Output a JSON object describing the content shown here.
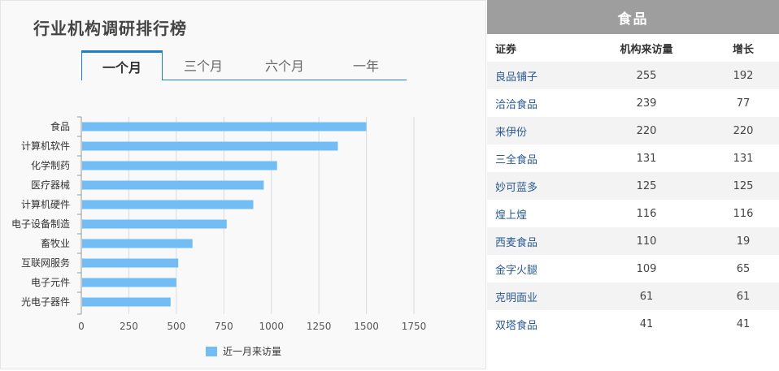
{
  "left": {
    "title": "行业机构调研排行榜",
    "tabs": [
      "一个月",
      "三个月",
      "六个月",
      "一年"
    ],
    "active_tab": 0
  },
  "chart_data": {
    "type": "bar",
    "orientation": "horizontal",
    "categories": [
      "食品",
      "计算机软件",
      "化学制药",
      "医疗器械",
      "计算机硬件",
      "电子设备制造",
      "畜牧业",
      "互联网服务",
      "电子元件",
      "光电子器件"
    ],
    "series": [
      {
        "name": "近一月来访量",
        "values": [
          1500,
          1350,
          1030,
          960,
          905,
          765,
          585,
          510,
          500,
          470
        ]
      }
    ],
    "xlim": [
      0,
      1750
    ],
    "xticks": [
      0,
      250,
      500,
      750,
      1000,
      1250,
      1500,
      1750
    ],
    "grid": true,
    "legend": "bottom",
    "bar_color": "#72bdf3"
  },
  "right": {
    "header": "食品",
    "columns": [
      "证券",
      "机构来访量",
      "增长"
    ],
    "rows": [
      {
        "name": "良品铺子",
        "visits": "255",
        "growth": "192"
      },
      {
        "name": "洽洽食品",
        "visits": "239",
        "growth": "77"
      },
      {
        "name": "来伊份",
        "visits": "220",
        "growth": "220"
      },
      {
        "name": "三全食品",
        "visits": "131",
        "growth": "131"
      },
      {
        "name": "妙可蓝多",
        "visits": "125",
        "growth": "125"
      },
      {
        "name": "煌上煌",
        "visits": "116",
        "growth": "116"
      },
      {
        "name": "西麦食品",
        "visits": "110",
        "growth": "19"
      },
      {
        "name": "金字火腿",
        "visits": "109",
        "growth": "65"
      },
      {
        "name": "克明面业",
        "visits": "61",
        "growth": "61"
      },
      {
        "name": "双塔食品",
        "visits": "41",
        "growth": "41"
      }
    ]
  }
}
